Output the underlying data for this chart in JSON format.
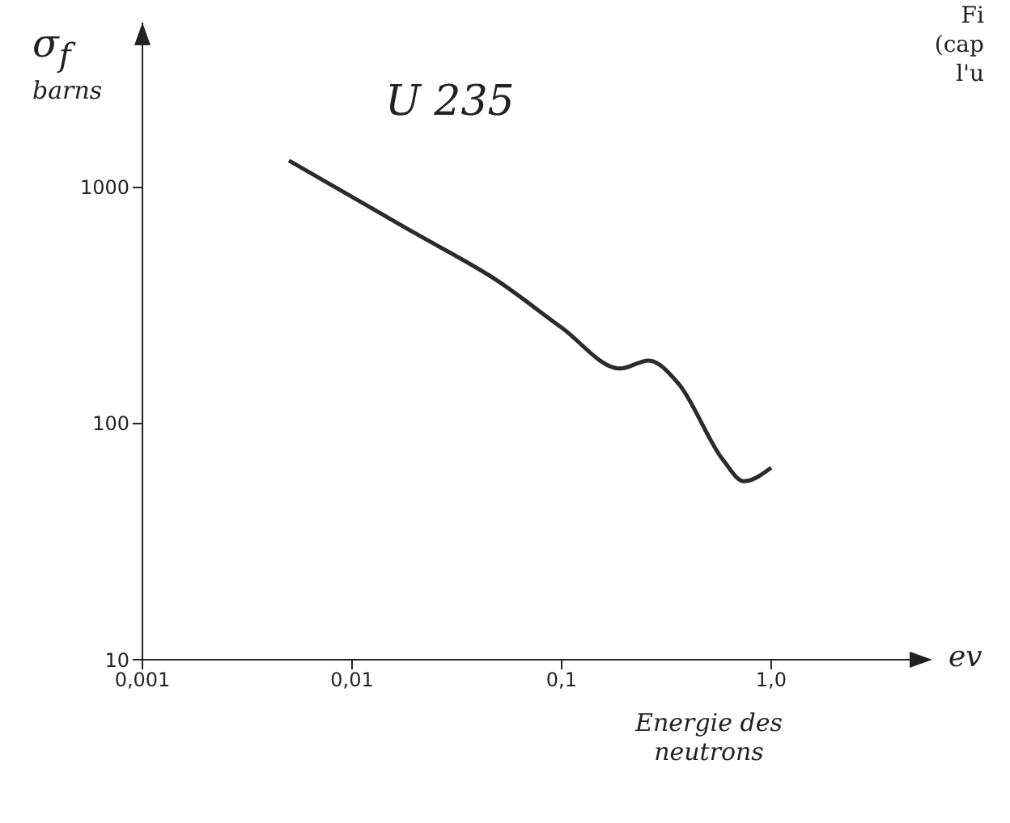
{
  "chart_data": {
    "type": "line",
    "title": "U 235",
    "xlabel": "Energie des neutrons",
    "ylabel": "σ$_{f}$ barns",
    "annotations": [
      "ev",
      "Fi",
      "(cap",
      "l'u"
    ],
    "x": [
      0.005,
      0.02,
      0.05,
      0.1,
      0.19,
      0.26,
      0.36,
      0.59,
      0.74,
      1.0
    ],
    "series": [
      {
        "color": "#2b2b2b",
        "values": [
          1300,
          640,
          400,
          255,
          171,
          185,
          148,
          70,
          57,
          65
        ]
      }
    ],
    "log": "xy",
    "xlim": [
      0.001,
      2.5
    ],
    "ylim": [
      10,
      4000
    ],
    "xticks": [
      {
        "value": 0.001,
        "label": "0,001"
      },
      {
        "value": 0.01,
        "label": "0,01"
      },
      {
        "value": 0.1,
        "label": "0,1"
      },
      {
        "value": 1,
        "label": "1,0"
      }
    ],
    "yticks": [
      10,
      100,
      1000
    ],
    "grid": false,
    "legend": false,
    "marker": "none",
    "line_style": "solid"
  }
}
